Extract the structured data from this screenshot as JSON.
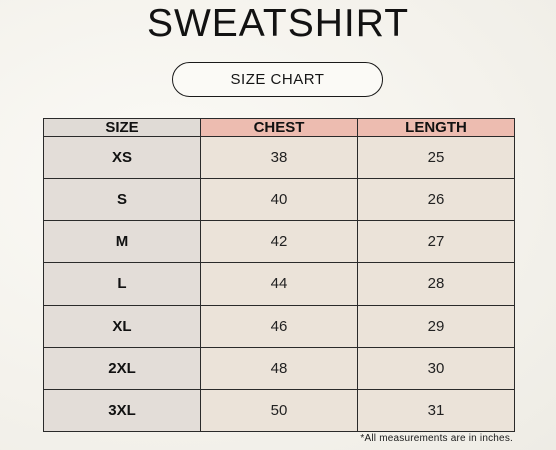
{
  "title": "SWEATSHIRT",
  "subtitle": "SIZE CHART",
  "table": {
    "headers": [
      "SIZE",
      "CHEST",
      "LENGTH"
    ],
    "rows": [
      {
        "size": "XS",
        "chest": "38",
        "length": "25"
      },
      {
        "size": "S",
        "chest": "40",
        "length": "26"
      },
      {
        "size": "M",
        "chest": "42",
        "length": "27"
      },
      {
        "size": "L",
        "chest": "44",
        "length": "28"
      },
      {
        "size": "XL",
        "chest": "46",
        "length": "29"
      },
      {
        "size": "2XL",
        "chest": "48",
        "length": "30"
      },
      {
        "size": "3XL",
        "chest": "50",
        "length": "31"
      }
    ]
  },
  "footnote": "*All measurements are in inches.",
  "colors": {
    "background": "#f4f2ec",
    "header_accent": "#edbcb0",
    "size_column": "#e3ddd8",
    "value_cells": "#ebe3d9"
  }
}
